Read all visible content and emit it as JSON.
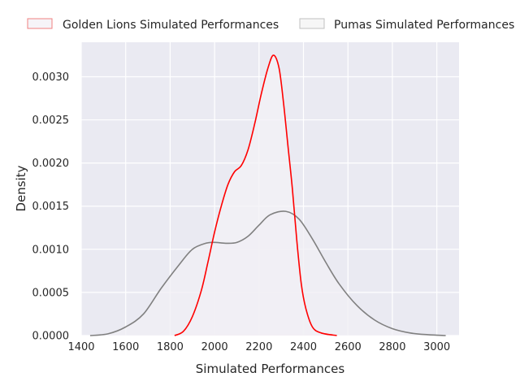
{
  "chart_data": {
    "type": "line",
    "title": "",
    "xlabel": "Simulated Performances",
    "ylabel": "Density",
    "xlim": [
      1400,
      3100
    ],
    "ylim": [
      0,
      0.0034
    ],
    "x_ticks": [
      1400,
      1600,
      1800,
      2000,
      2200,
      2400,
      2600,
      2800,
      3000
    ],
    "x_tick_labels": [
      "1400",
      "1600",
      "1800",
      "2000",
      "2200",
      "2400",
      "2600",
      "2800",
      "3000"
    ],
    "y_ticks": [
      0,
      0.0005,
      0.001,
      0.0015,
      0.002,
      0.0025,
      0.003
    ],
    "y_tick_labels": [
      "0.0000",
      "0.0005",
      "0.0010",
      "0.0015",
      "0.0020",
      "0.0025",
      "0.0030"
    ],
    "grid": true,
    "legend_position": "top, outside plot",
    "series": [
      {
        "name": "Golden Lions Simulated Performances",
        "color": "#ff0000",
        "fill": "#f3f1f6",
        "points": [
          [
            1820,
            0.0
          ],
          [
            1860,
            5e-05
          ],
          [
            1900,
            0.00022
          ],
          [
            1940,
            0.00052
          ],
          [
            1970,
            0.00085
          ],
          [
            2000,
            0.0012
          ],
          [
            2030,
            0.0015
          ],
          [
            2060,
            0.00175
          ],
          [
            2090,
            0.0019
          ],
          [
            2120,
            0.00197
          ],
          [
            2150,
            0.00215
          ],
          [
            2180,
            0.00245
          ],
          [
            2210,
            0.0028
          ],
          [
            2240,
            0.0031
          ],
          [
            2265,
            0.00325
          ],
          [
            2290,
            0.0031
          ],
          [
            2310,
            0.0027
          ],
          [
            2330,
            0.0022
          ],
          [
            2350,
            0.0017
          ],
          [
            2370,
            0.0011
          ],
          [
            2390,
            0.0006
          ],
          [
            2410,
            0.00032
          ],
          [
            2440,
            0.0001
          ],
          [
            2480,
            3e-05
          ],
          [
            2550,
            0.0
          ]
        ]
      },
      {
        "name": "Pumas Simulated Performances",
        "color": "#808080",
        "fill": "#f0eff4",
        "points": [
          [
            1440,
            0.0
          ],
          [
            1520,
            2e-05
          ],
          [
            1600,
            0.0001
          ],
          [
            1680,
            0.00025
          ],
          [
            1760,
            0.00055
          ],
          [
            1840,
            0.00082
          ],
          [
            1900,
            0.001
          ],
          [
            1960,
            0.00107
          ],
          [
            2000,
            0.00108
          ],
          [
            2050,
            0.00107
          ],
          [
            2100,
            0.00108
          ],
          [
            2150,
            0.00115
          ],
          [
            2200,
            0.00128
          ],
          [
            2250,
            0.0014
          ],
          [
            2320,
            0.00144
          ],
          [
            2380,
            0.00135
          ],
          [
            2440,
            0.00112
          ],
          [
            2500,
            0.00085
          ],
          [
            2560,
            0.0006
          ],
          [
            2640,
            0.00035
          ],
          [
            2720,
            0.00018
          ],
          [
            2800,
            8e-05
          ],
          [
            2880,
            3e-05
          ],
          [
            2960,
            1e-05
          ],
          [
            3040,
            0.0
          ]
        ]
      }
    ]
  }
}
